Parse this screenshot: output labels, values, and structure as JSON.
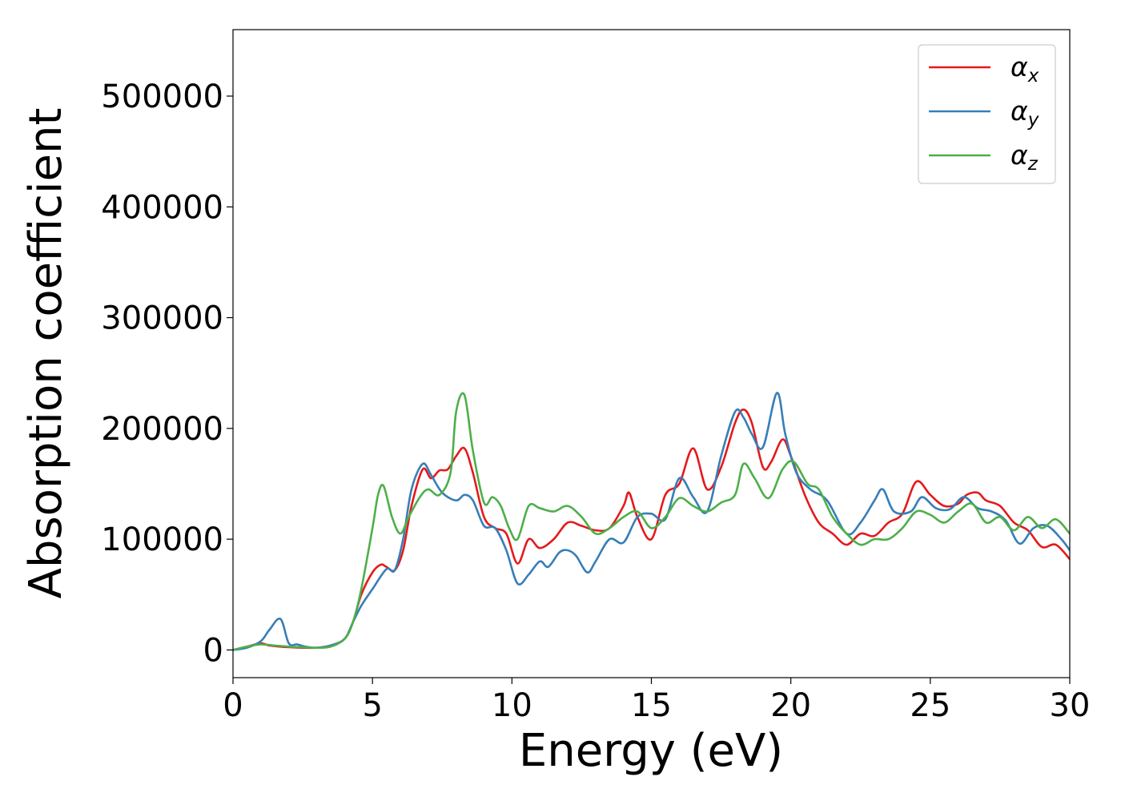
{
  "chart_data": {
    "type": "line",
    "title": "",
    "xlabel": "Energy (eV)",
    "ylabel": "Absorption coefficient",
    "xlim": [
      0,
      30
    ],
    "ylim": [
      -25000,
      560000
    ],
    "xticks": [
      0,
      5,
      10,
      15,
      20,
      25,
      30
    ],
    "xtick_labels": [
      "0",
      "5",
      "10",
      "15",
      "20",
      "25",
      "30"
    ],
    "yticks": [
      0,
      100000,
      200000,
      300000,
      400000,
      500000
    ],
    "ytick_labels": [
      "0",
      "100000",
      "200000",
      "300000",
      "400000",
      "500000"
    ],
    "grid": false,
    "legend_position": "top-right",
    "series": [
      {
        "name": "α",
        "subscript": "x",
        "color": "#e41a1c",
        "x": [
          0,
          0.5,
          1,
          1.3,
          1.7,
          2,
          2.5,
          3,
          3.5,
          4,
          4.3,
          4.6,
          5,
          5.3,
          5.5,
          5.8,
          6.1,
          6.4,
          6.8,
          7.1,
          7.4,
          7.7,
          8,
          8.3,
          8.6,
          9,
          9.4,
          9.8,
          10.2,
          10.6,
          11,
          11.5,
          12,
          12.5,
          13,
          13.5,
          14,
          14.2,
          14.5,
          15,
          15.5,
          16,
          16.5,
          17,
          17.5,
          18,
          18.3,
          18.6,
          19,
          19.3,
          19.7,
          20,
          20.5,
          21,
          21.5,
          22,
          22.5,
          23,
          23.5,
          24,
          24.5,
          25,
          25.5,
          26,
          26.3,
          26.7,
          27,
          27.5,
          28,
          28.5,
          29,
          29.5,
          30
        ],
        "y": [
          0,
          3000,
          6000,
          4000,
          3000,
          2500,
          2000,
          2000,
          4000,
          10000,
          25000,
          50000,
          70000,
          77000,
          75000,
          72000,
          90000,
          130000,
          163000,
          155000,
          162000,
          163000,
          175000,
          182000,
          160000,
          120000,
          110000,
          105000,
          78000,
          100000,
          92000,
          100000,
          115000,
          112000,
          108000,
          110000,
          130000,
          142000,
          120000,
          100000,
          140000,
          150000,
          182000,
          145000,
          165000,
          205000,
          217000,
          205000,
          165000,
          170000,
          190000,
          175000,
          140000,
          115000,
          105000,
          95000,
          105000,
          103000,
          115000,
          123000,
          152000,
          140000,
          130000,
          132000,
          140000,
          142000,
          135000,
          130000,
          115000,
          108000,
          93000,
          95000,
          82000
        ]
      },
      {
        "name": "α",
        "subscript": "y",
        "color": "#377eb8",
        "x": [
          0,
          0.5,
          1,
          1.3,
          1.7,
          2,
          2.3,
          2.6,
          3,
          3.5,
          4,
          4.3,
          4.6,
          5,
          5.5,
          5.8,
          6.1,
          6.4,
          6.8,
          7.1,
          7.5,
          8,
          8.3,
          8.6,
          9,
          9.4,
          9.8,
          10.2,
          10.6,
          11,
          11.3,
          11.7,
          12,
          12.3,
          12.7,
          13,
          13.5,
          14,
          14.5,
          15,
          15.5,
          16,
          16.5,
          17,
          17.5,
          18,
          18.3,
          18.6,
          19,
          19.5,
          19.8,
          20.2,
          20.7,
          21.3,
          22,
          22.5,
          23,
          23.3,
          23.7,
          24.3,
          24.7,
          25.2,
          25.7,
          26.2,
          26.7,
          27.2,
          27.7,
          28.2,
          28.7,
          29.2,
          29.7,
          30
        ],
        "y": [
          0,
          2000,
          8000,
          18000,
          28000,
          6000,
          5000,
          3000,
          2000,
          4000,
          10000,
          25000,
          40000,
          55000,
          73000,
          72000,
          100000,
          145000,
          168000,
          158000,
          142000,
          135000,
          140000,
          135000,
          112000,
          110000,
          90000,
          60000,
          68000,
          80000,
          75000,
          88000,
          90000,
          85000,
          70000,
          80000,
          100000,
          97000,
          120000,
          123000,
          118000,
          155000,
          138000,
          125000,
          175000,
          215000,
          210000,
          195000,
          183000,
          232000,
          195000,
          160000,
          145000,
          135000,
          105000,
          115000,
          135000,
          145000,
          125000,
          125000,
          138000,
          128000,
          127000,
          138000,
          128000,
          125000,
          117000,
          96000,
          110000,
          112000,
          100000,
          90000
        ]
      },
      {
        "name": "α",
        "subscript": "z",
        "color": "#4daf4a",
        "x": [
          0,
          0.5,
          1,
          1.5,
          2,
          2.5,
          3,
          3.5,
          4,
          4.3,
          4.6,
          5,
          5.2,
          5.4,
          5.7,
          6,
          6.3,
          6.7,
          7,
          7.4,
          7.8,
          8,
          8.3,
          8.6,
          9,
          9.3,
          9.6,
          9.9,
          10.2,
          10.6,
          11,
          11.5,
          12,
          12.5,
          13,
          13.5,
          14,
          14.5,
          15,
          15.5,
          16,
          16.5,
          17,
          17.5,
          18,
          18.3,
          18.7,
          19.2,
          19.7,
          20.1,
          20.6,
          21,
          21.5,
          22,
          22.5,
          23,
          23.5,
          24,
          24.5,
          25,
          25.5,
          26,
          26.5,
          27,
          27.5,
          28,
          28.5,
          29,
          29.5,
          30
        ],
        "y": [
          0,
          3000,
          5000,
          4000,
          3000,
          2500,
          2000,
          3000,
          10000,
          25000,
          55000,
          110000,
          140000,
          148000,
          120000,
          105000,
          120000,
          138000,
          145000,
          140000,
          160000,
          215000,
          230000,
          180000,
          133000,
          138000,
          130000,
          110000,
          100000,
          130000,
          128000,
          125000,
          130000,
          120000,
          105000,
          110000,
          120000,
          125000,
          110000,
          120000,
          137000,
          130000,
          125000,
          133000,
          140000,
          168000,
          155000,
          137000,
          163000,
          170000,
          150000,
          145000,
          120000,
          105000,
          95000,
          100000,
          100000,
          110000,
          125000,
          122000,
          115000,
          125000,
          132000,
          115000,
          120000,
          108000,
          120000,
          110000,
          118000,
          105000
        ]
      }
    ]
  }
}
